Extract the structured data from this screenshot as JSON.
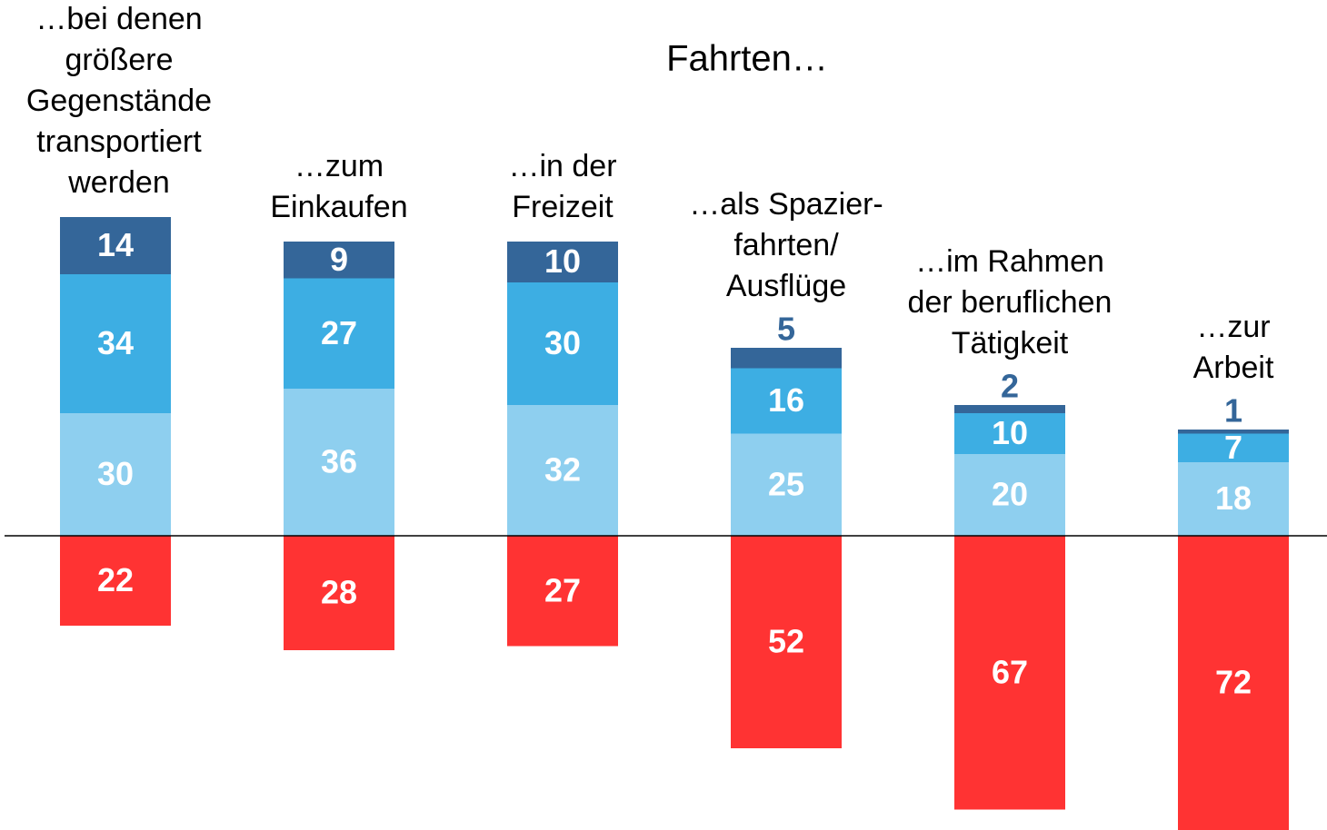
{
  "chart_data": {
    "type": "bar",
    "stacked": true,
    "title": "Fahrten…",
    "categories": [
      [
        "…bei denen",
        "größere",
        "Gegenstände",
        "transportiert",
        "werden"
      ],
      [
        "…zum",
        "Einkaufen"
      ],
      [
        "…in der",
        "Freizeit"
      ],
      [
        "…als Spazier-",
        "fahrten/",
        "Ausflüge"
      ],
      [
        "…im Rahmen",
        "der beruflichen",
        "Tätigkeit"
      ],
      [
        "…zur",
        "Arbeit"
      ]
    ],
    "series": [
      {
        "color": "#8ecfef",
        "values": [
          30,
          36,
          32,
          25,
          20,
          18
        ]
      },
      {
        "color": "#3daee3",
        "values": [
          34,
          27,
          30,
          16,
          10,
          7
        ]
      },
      {
        "color": "#346699",
        "values": [
          14,
          9,
          10,
          5,
          2,
          1
        ]
      },
      {
        "color": "#ff3333",
        "values": [
          -22,
          -28,
          -27,
          -52,
          -67,
          -72
        ],
        "value_labels": [
          "22",
          "28",
          "27",
          "52",
          "67",
          "72"
        ]
      }
    ]
  }
}
